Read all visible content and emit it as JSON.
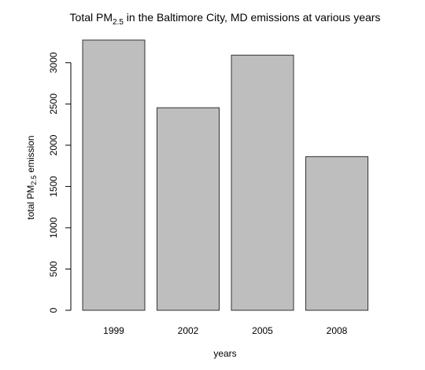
{
  "chart_data": {
    "type": "bar",
    "title": {
      "prefix": "Total PM",
      "subscript": "2.5",
      "suffix": " in the Baltimore City, MD emissions at various years"
    },
    "xlabel": "years",
    "ylabel": {
      "prefix": "total PM",
      "subscript": "2.5",
      "suffix": " emission"
    },
    "categories": [
      "1999",
      "2002",
      "2005",
      "2008"
    ],
    "values": [
      3274,
      2454,
      3091,
      1862
    ],
    "ylim": [
      0,
      3274
    ],
    "yticks": [
      0,
      500,
      1000,
      1500,
      2000,
      2500,
      3000
    ],
    "bar_color": "#bebebe",
    "bar_stroke": "#333333",
    "grid": false,
    "legend": "none"
  }
}
